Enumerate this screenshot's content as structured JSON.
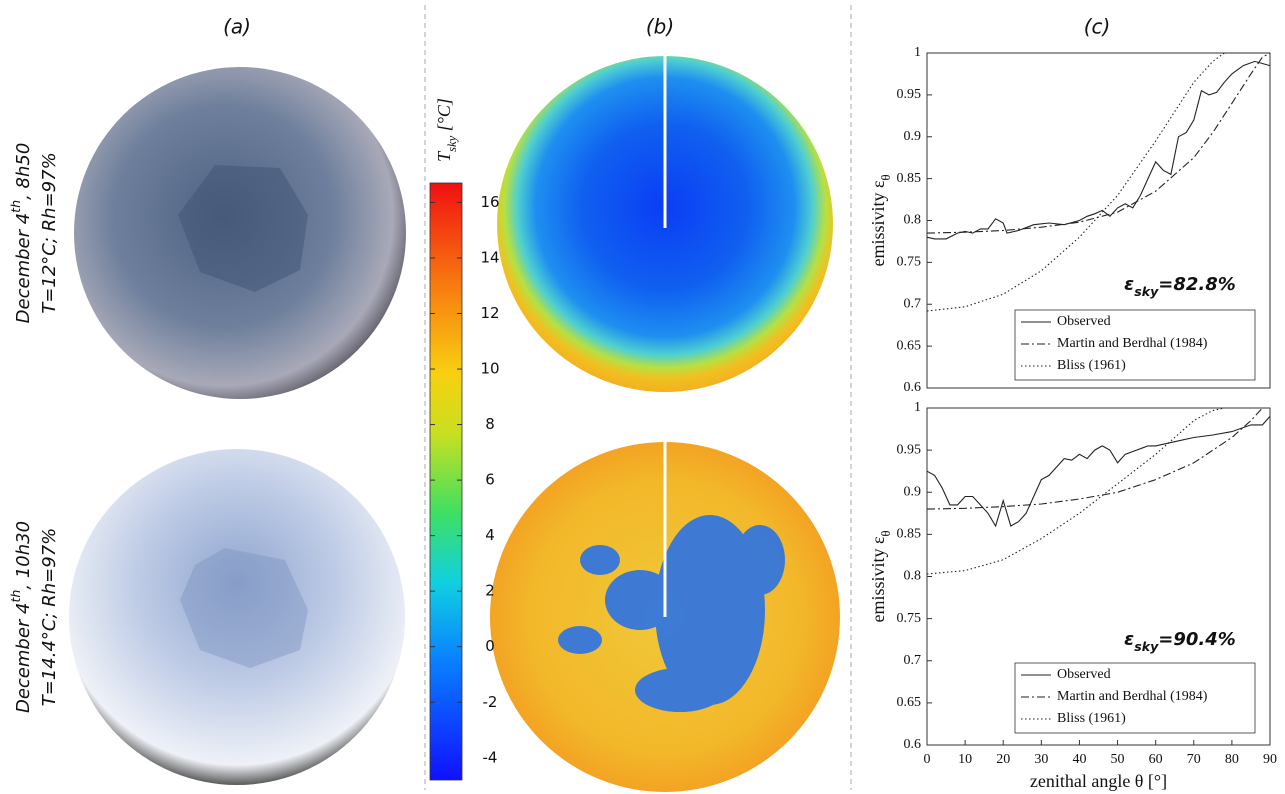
{
  "panels": [
    "(a)",
    "(b)",
    "(c)"
  ],
  "photos": [
    {
      "line1": [
        "December 4",
        "th",
        ", 8h50"
      ],
      "line2": "T=12°C;  Rh=97%"
    },
    {
      "line1": [
        "December 4",
        "th",
        ", 10h30"
      ],
      "line2": "T=14.4°C; Rh=97%"
    }
  ],
  "colorbar": {
    "title": {
      "main": "T",
      "sub": "sky",
      "unit": " [°C]"
    },
    "lim": [
      -4.8,
      16.7
    ],
    "ticks": [
      -4,
      -2,
      0,
      2,
      4,
      6,
      8,
      10,
      12,
      14,
      16
    ]
  },
  "chart_data": [
    {
      "type": "line",
      "ylabel": {
        "main": "emissivity ε",
        "sub": "θ"
      },
      "annotation": {
        "main": "ε",
        "sub": "sky",
        "rest": "=82.8%"
      },
      "xlim": [
        0,
        90
      ],
      "ylim": [
        0.6,
        1
      ],
      "yticks": [
        0.6,
        0.65,
        0.7,
        0.75,
        0.8,
        0.85,
        0.9,
        0.95,
        1
      ],
      "series": [
        {
          "name": "Observed",
          "color": "#222222",
          "style": "solid",
          "x": [
            0,
            2,
            5,
            8,
            10,
            12,
            14,
            16,
            18,
            20,
            21,
            24,
            28,
            32,
            36,
            40,
            42,
            44,
            46,
            48,
            50,
            52,
            54,
            56,
            58,
            60,
            62,
            64,
            66,
            68,
            70,
            72,
            74,
            76,
            78,
            80,
            83,
            86,
            90
          ],
          "values": [
            0.78,
            0.778,
            0.778,
            0.785,
            0.787,
            0.785,
            0.79,
            0.79,
            0.802,
            0.797,
            0.785,
            0.788,
            0.795,
            0.797,
            0.795,
            0.8,
            0.805,
            0.808,
            0.812,
            0.805,
            0.815,
            0.82,
            0.815,
            0.83,
            0.85,
            0.87,
            0.86,
            0.855,
            0.9,
            0.905,
            0.92,
            0.955,
            0.95,
            0.953,
            0.965,
            0.975,
            0.985,
            0.99,
            0.985
          ]
        },
        {
          "name": "Martin and Berdhal (1984)",
          "color": "#222222",
          "style": "dashdot",
          "x": [
            0,
            10,
            20,
            30,
            40,
            50,
            60,
            70,
            75,
            80,
            85,
            88,
            90
          ],
          "values": [
            0.785,
            0.786,
            0.788,
            0.792,
            0.798,
            0.81,
            0.835,
            0.875,
            0.905,
            0.94,
            0.975,
            0.995,
            1.0
          ]
        },
        {
          "name": "Bliss (1961)",
          "color": "#222222",
          "style": "dotted",
          "x": [
            0,
            10,
            20,
            30,
            40,
            50,
            60,
            65,
            70,
            75,
            78,
            90
          ],
          "values": [
            0.692,
            0.697,
            0.712,
            0.74,
            0.78,
            0.83,
            0.895,
            0.93,
            0.965,
            0.99,
            1.0,
            1.0
          ]
        }
      ]
    },
    {
      "type": "line",
      "ylabel": {
        "main": "emissivity ε",
        "sub": "θ"
      },
      "xlabel": "zenithal angle θ [°]",
      "annotation": {
        "main": "ε",
        "sub": "sky",
        "rest": "=90.4%"
      },
      "xlim": [
        0,
        90
      ],
      "ylim": [
        0.6,
        1
      ],
      "xticks": [
        0,
        10,
        20,
        30,
        40,
        50,
        60,
        70,
        80,
        90
      ],
      "yticks": [
        0.6,
        0.65,
        0.7,
        0.75,
        0.8,
        0.85,
        0.9,
        0.95,
        1
      ],
      "series": [
        {
          "name": "Observed",
          "color": "#222222",
          "style": "solid",
          "x": [
            0,
            2,
            4,
            6,
            8,
            10,
            12,
            14,
            16,
            18,
            20,
            22,
            24,
            26,
            28,
            30,
            32,
            34,
            36,
            38,
            40,
            42,
            44,
            46,
            48,
            50,
            52,
            55,
            58,
            60,
            65,
            70,
            75,
            80,
            85,
            88,
            90
          ],
          "values": [
            0.925,
            0.92,
            0.905,
            0.885,
            0.885,
            0.895,
            0.895,
            0.885,
            0.875,
            0.86,
            0.89,
            0.86,
            0.865,
            0.875,
            0.895,
            0.915,
            0.92,
            0.93,
            0.94,
            0.938,
            0.945,
            0.94,
            0.95,
            0.955,
            0.95,
            0.935,
            0.945,
            0.95,
            0.955,
            0.955,
            0.96,
            0.965,
            0.968,
            0.972,
            0.98,
            0.98,
            0.99
          ]
        },
        {
          "name": "Martin and Berdhal (1984)",
          "color": "#222222",
          "style": "dashdot",
          "x": [
            0,
            10,
            20,
            30,
            40,
            50,
            60,
            70,
            80,
            85,
            88
          ],
          "values": [
            0.88,
            0.881,
            0.883,
            0.886,
            0.892,
            0.9,
            0.915,
            0.935,
            0.965,
            0.985,
            1.0
          ]
        },
        {
          "name": "Bliss (1961)",
          "color": "#222222",
          "style": "dotted",
          "x": [
            0,
            10,
            20,
            30,
            40,
            50,
            60,
            65,
            70,
            75,
            78
          ],
          "values": [
            0.803,
            0.807,
            0.82,
            0.845,
            0.875,
            0.91,
            0.945,
            0.965,
            0.985,
            0.997,
            1.0
          ]
        }
      ]
    }
  ]
}
